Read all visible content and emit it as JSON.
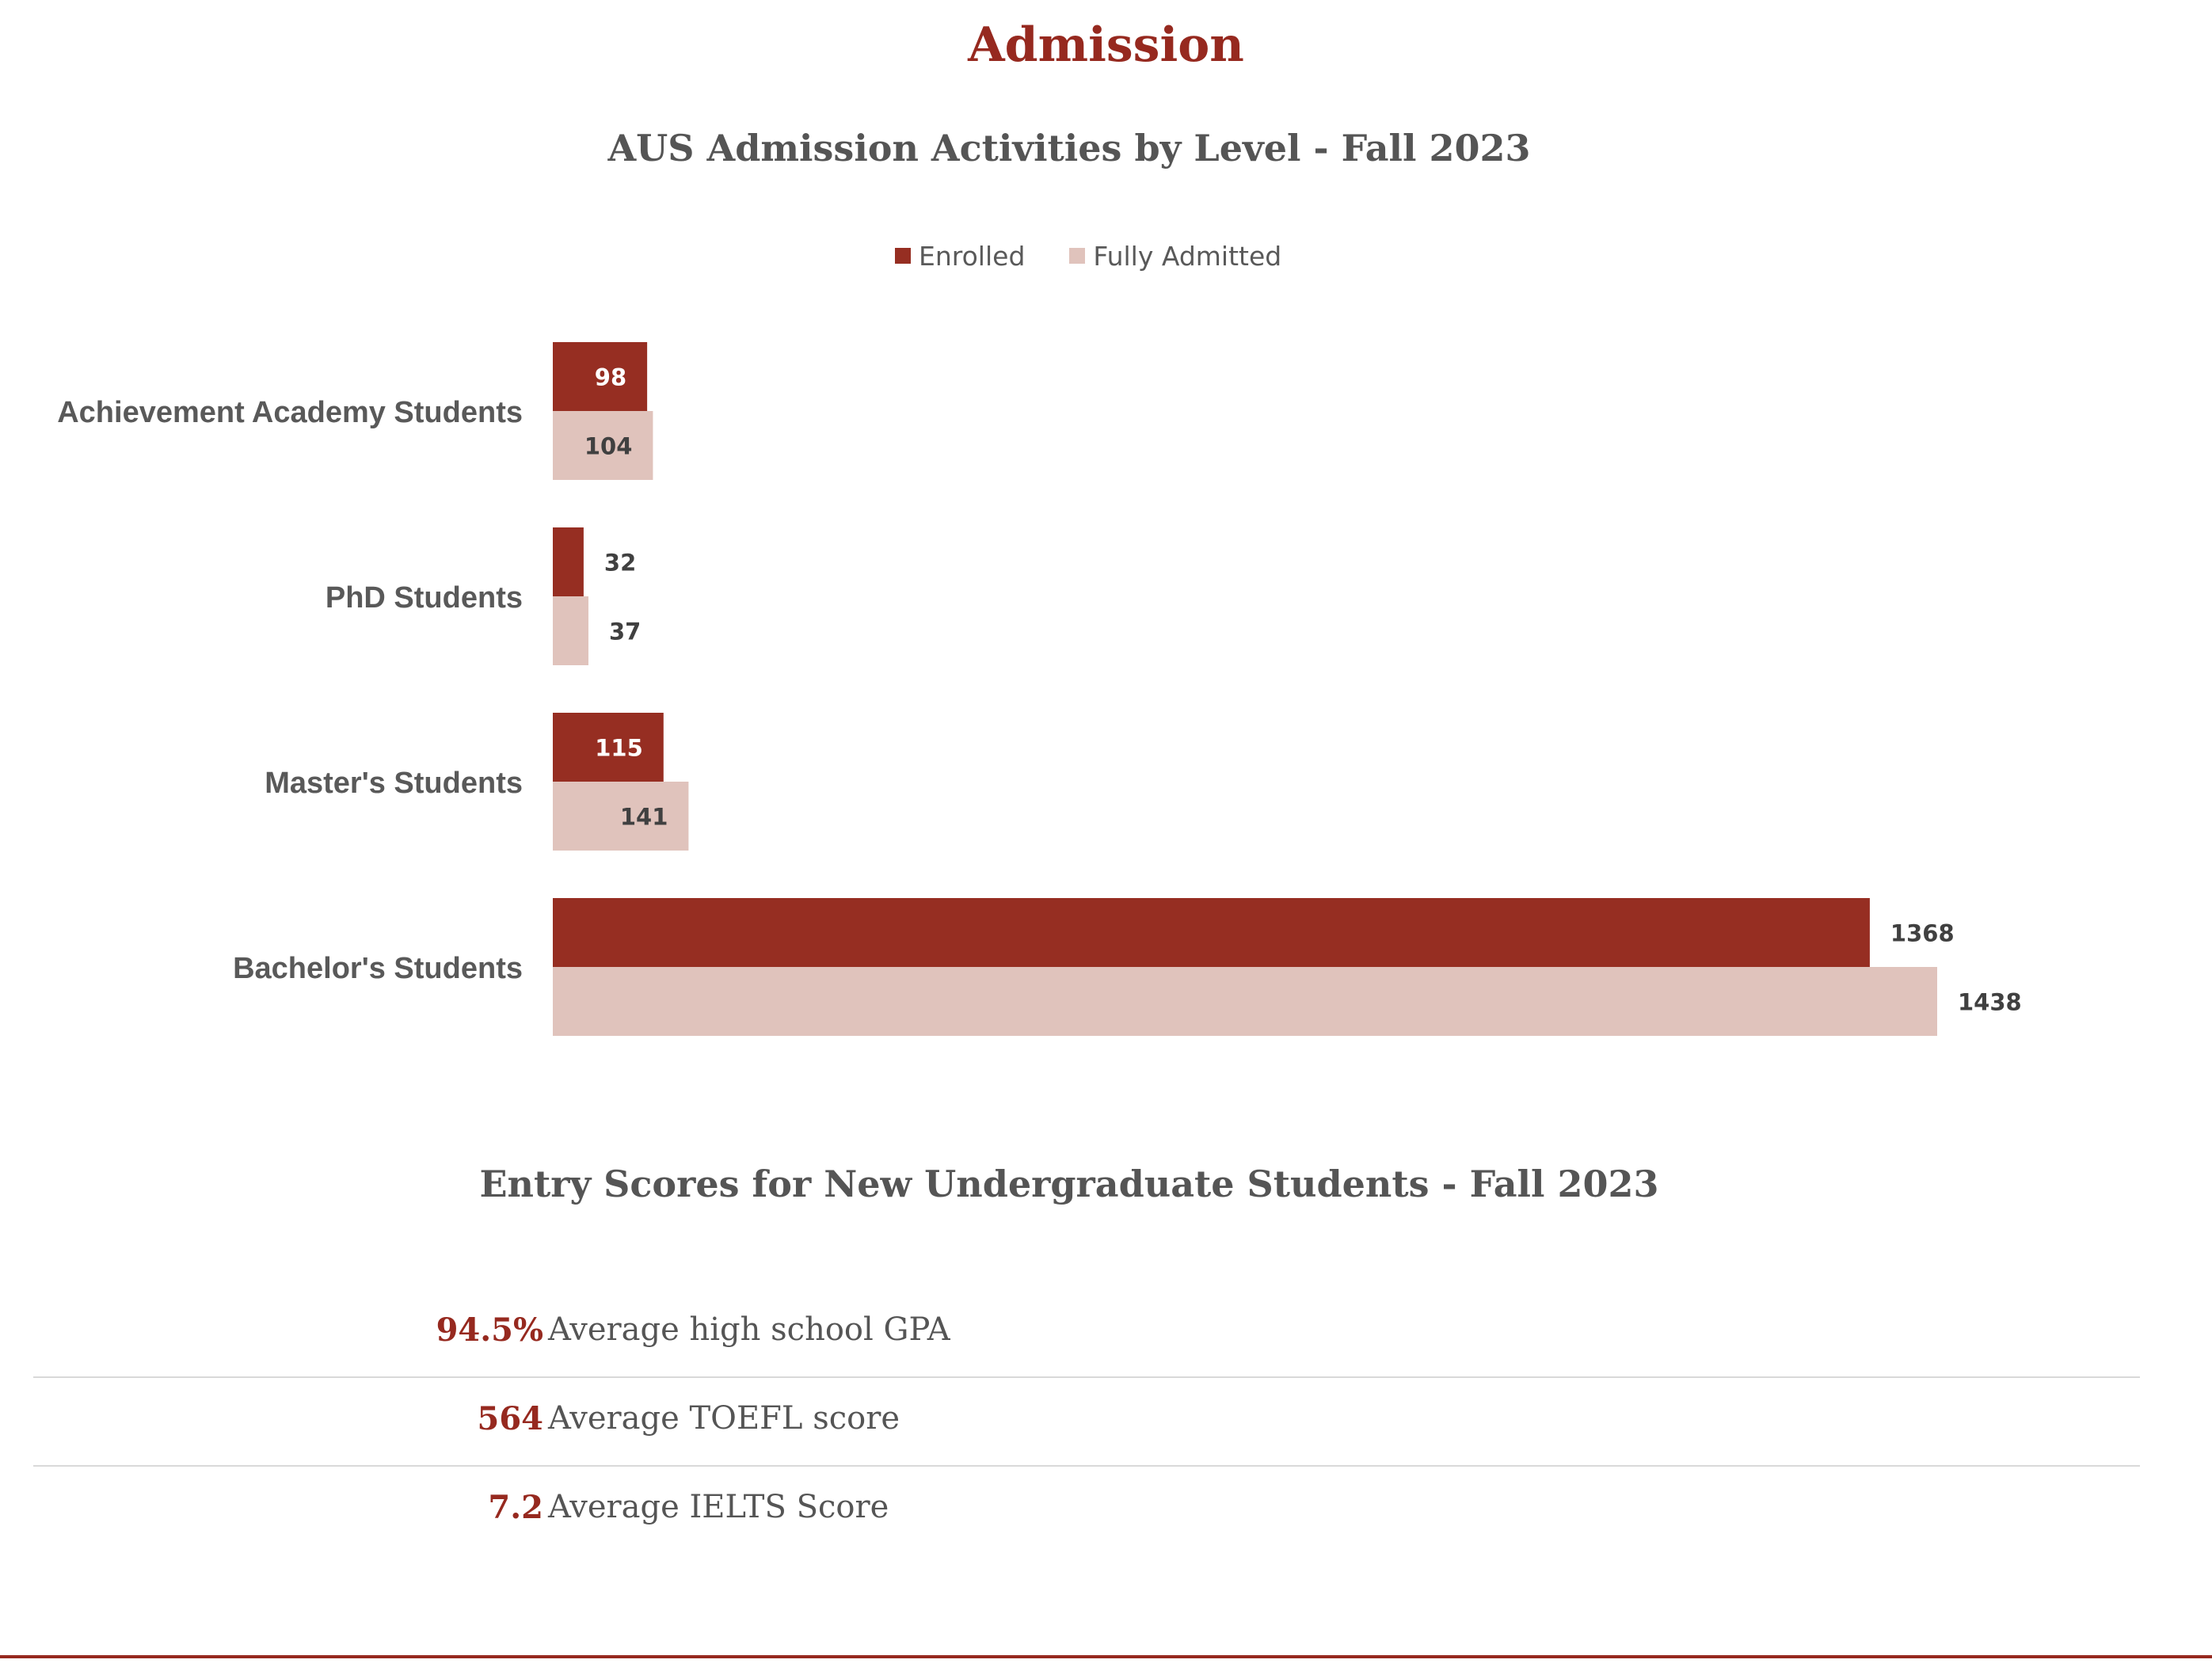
{
  "page": {
    "title": "Admission"
  },
  "colors": {
    "accent": "#96291f",
    "enrolled": "#962e22",
    "fully_admitted": "#e0c3bc",
    "text_gray": "#555555",
    "divider": "#d9d9d9"
  },
  "chart_data": {
    "type": "bar",
    "orientation": "horizontal",
    "title": "AUS Admission Activities by Level - Fall 2023",
    "categories": [
      "Achievement Academy Students",
      "PhD Students",
      "Master's Students",
      "Bachelor's Students"
    ],
    "series": [
      {
        "name": "Enrolled",
        "values": [
          98,
          32,
          115,
          1368
        ]
      },
      {
        "name": "Fully Admitted",
        "values": [
          104,
          37,
          141,
          1438
        ]
      }
    ],
    "xlim": [
      0,
      1600
    ],
    "grid": false,
    "legend_position": "top"
  },
  "entry_scores": {
    "title": "Entry Scores for New Undergraduate Students - Fall 2023",
    "items": [
      {
        "value": "94.5%",
        "label": "Average high school GPA"
      },
      {
        "value": "564",
        "label": "Average TOEFL score"
      },
      {
        "value": "7.2",
        "label": "Average IELTS Score"
      }
    ]
  }
}
